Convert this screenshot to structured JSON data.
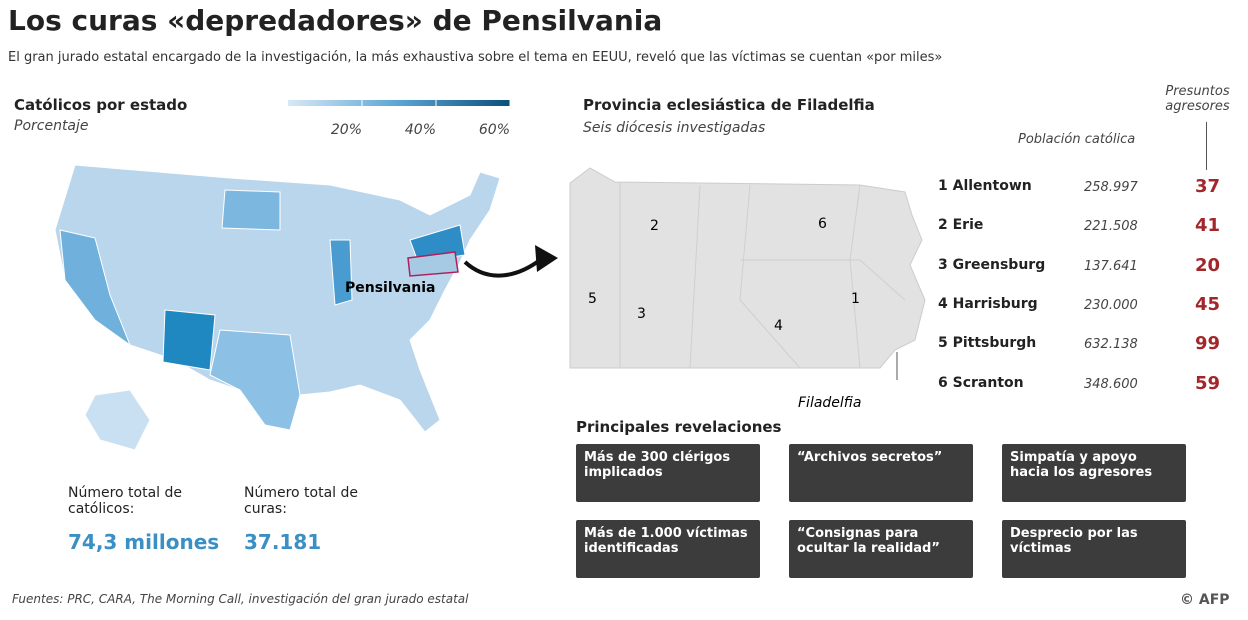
{
  "header": {
    "title": "Los curas «depredadores» de Pensilvania",
    "subtitle": "El gran jurado estatal encargado de la investigación, la más exhaustiva sobre el tema en EEUU, reveló que las víctimas se cuentan «por miles»"
  },
  "us_map": {
    "title": "Católicos por estado",
    "subtitle": "Porcentaje",
    "legend_ticks": [
      {
        "value": 20,
        "label": "20%"
      },
      {
        "value": 40,
        "label": "40%"
      },
      {
        "value": 60,
        "label": "60%"
      }
    ],
    "state_label": "Pensilvania"
  },
  "totals": [
    {
      "label": "Número total de católicos:",
      "value": "74,3 millones"
    },
    {
      "label": "Número total de curas:",
      "value": "37.181"
    }
  ],
  "province": {
    "title": "Provincia eclesiástica de Filadelfia",
    "subtitle": "Seis diócesis investigadas",
    "map_numbers": [
      "1",
      "2",
      "3",
      "4",
      "5",
      "6"
    ],
    "city_label": "Filadelfia",
    "columns": [
      "Población católica",
      "Presuntos agresores"
    ],
    "rows": [
      [
        "1 Allentown",
        "258.997",
        "37"
      ],
      [
        "2 Erie",
        "221.508",
        "41"
      ],
      [
        "3 Greensburg",
        "137.641",
        "20"
      ],
      [
        "4 Harrisburg",
        "230.000",
        "45"
      ],
      [
        "5 Pittsburgh",
        "632.138",
        "99"
      ],
      [
        "6 Scranton",
        "348.600",
        "59"
      ]
    ]
  },
  "revelations": {
    "title": "Principales revelaciones",
    "items": [
      "Más de 300 clérigos implicados",
      "“Archivos secretos”",
      "Simpatía y apoyo hacia los agresores",
      "Más de 1.000 víctimas identificadas",
      "“Consignas para ocultar la realidad”",
      "Desprecio por las víctimas"
    ]
  },
  "footer": {
    "sources": "Fuentes: PRC, CARA, The Morning Call, investigación del gran jurado estatal",
    "credit": "© AFP"
  }
}
